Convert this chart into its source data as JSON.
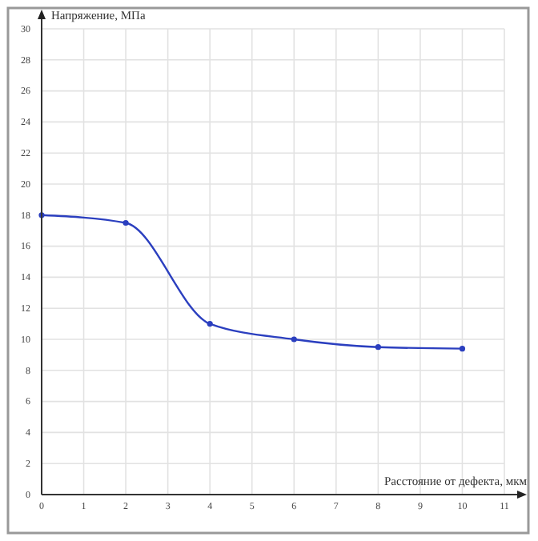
{
  "chart_data": {
    "type": "line",
    "xlabel": "Расстояние от дефекта, мкм",
    "ylabel": "Напряжение, МПа",
    "x": [
      0,
      2,
      4,
      6,
      8,
      10
    ],
    "series": [
      {
        "color": "#2b3fbf",
        "values": [
          18,
          17.5,
          11,
          10,
          9.5,
          9.4
        ]
      }
    ],
    "xlim": [
      0,
      11
    ],
    "xticks": [
      0,
      1,
      2,
      3,
      4,
      5,
      6,
      7,
      8,
      9,
      10,
      11
    ],
    "ylim": [
      0,
      30
    ],
    "yticks": [
      0,
      2,
      4,
      6,
      8,
      10,
      12,
      14,
      16,
      18,
      20,
      22,
      24,
      26,
      28,
      30
    ],
    "grid": true,
    "marker": "circle",
    "line_style": "solid"
  }
}
